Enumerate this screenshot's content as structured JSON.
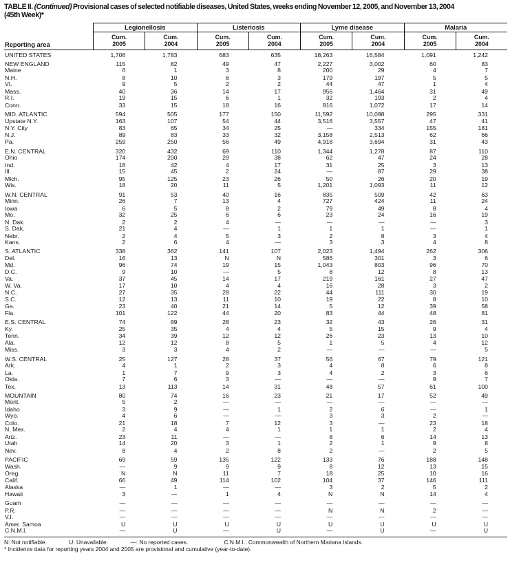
{
  "title": {
    "label": "TABLE II.",
    "continued": "(Continued)",
    "line1_rest": "Provisional cases of selected notifiable diseases, United States, weeks ending November 12, 2005, and November 13, 2004",
    "line2": "(45th Week)*"
  },
  "header": {
    "reporting_area": "Reporting area",
    "diseases": [
      "Legionellosis",
      "Listeriosis",
      "Lyme disease",
      "Malaria"
    ],
    "col_label": "Cum.",
    "years": [
      "2005",
      "2004"
    ]
  },
  "groups": [
    {
      "rows": [
        {
          "area": "UNITED STATES",
          "values": [
            "1,706",
            "1,783",
            "683",
            "635",
            "18,263",
            "16,584",
            "1,091",
            "1,242"
          ]
        }
      ]
    },
    {
      "rows": [
        {
          "area": "NEW ENGLAND",
          "values": [
            "115",
            "82",
            "49",
            "47",
            "2,227",
            "3,002",
            "60",
            "83"
          ]
        },
        {
          "area": "Maine",
          "values": [
            "6",
            "1",
            "3",
            "8",
            "200",
            "29",
            "4",
            "7"
          ]
        },
        {
          "area": "N.H.",
          "values": [
            "8",
            "10",
            "6",
            "3",
            "179",
            "197",
            "5",
            "5"
          ]
        },
        {
          "area": "Vt.",
          "values": [
            "9",
            "5",
            "2",
            "2",
            "44",
            "47",
            "1",
            "4"
          ]
        },
        {
          "area": "Mass.",
          "values": [
            "40",
            "36",
            "14",
            "17",
            "956",
            "1,464",
            "31",
            "49"
          ]
        },
        {
          "area": "R.I.",
          "values": [
            "19",
            "15",
            "6",
            "1",
            "32",
            "193",
            "2",
            "4"
          ]
        },
        {
          "area": "Conn.",
          "values": [
            "33",
            "15",
            "18",
            "16",
            "816",
            "1,072",
            "17",
            "14"
          ]
        }
      ]
    },
    {
      "rows": [
        {
          "area": "MID. ATLANTIC",
          "values": [
            "594",
            "505",
            "177",
            "150",
            "11,592",
            "10,098",
            "295",
            "331"
          ]
        },
        {
          "area": "Upstate N.Y.",
          "values": [
            "163",
            "107",
            "54",
            "44",
            "3,516",
            "3,557",
            "47",
            "41"
          ]
        },
        {
          "area": "N.Y. City",
          "values": [
            "83",
            "65",
            "34",
            "25",
            "—",
            "334",
            "155",
            "181"
          ]
        },
        {
          "area": "N.J.",
          "values": [
            "89",
            "83",
            "33",
            "32",
            "3,158",
            "2,513",
            "62",
            "66"
          ]
        },
        {
          "area": "Pa.",
          "values": [
            "259",
            "250",
            "56",
            "49",
            "4,918",
            "3,694",
            "31",
            "43"
          ]
        }
      ]
    },
    {
      "rows": [
        {
          "area": "E.N. CENTRAL",
          "values": [
            "320",
            "432",
            "69",
            "110",
            "1,344",
            "1,278",
            "87",
            "110"
          ]
        },
        {
          "area": "Ohio",
          "values": [
            "174",
            "200",
            "29",
            "38",
            "62",
            "47",
            "24",
            "28"
          ]
        },
        {
          "area": "Ind.",
          "values": [
            "18",
            "42",
            "4",
            "17",
            "31",
            "25",
            "3",
            "13"
          ]
        },
        {
          "area": "Ill.",
          "values": [
            "15",
            "45",
            "2",
            "24",
            "—",
            "87",
            "29",
            "38"
          ]
        },
        {
          "area": "Mich.",
          "values": [
            "95",
            "125",
            "23",
            "26",
            "50",
            "26",
            "20",
            "19"
          ]
        },
        {
          "area": "Wis.",
          "values": [
            "18",
            "20",
            "11",
            "5",
            "1,201",
            "1,093",
            "11",
            "12"
          ]
        }
      ]
    },
    {
      "rows": [
        {
          "area": "W.N. CENTRAL",
          "values": [
            "91",
            "53",
            "40",
            "16",
            "835",
            "509",
            "42",
            "63"
          ]
        },
        {
          "area": "Minn.",
          "values": [
            "26",
            "7",
            "13",
            "4",
            "727",
            "424",
            "11",
            "24"
          ]
        },
        {
          "area": "Iowa",
          "values": [
            "6",
            "5",
            "8",
            "2",
            "79",
            "49",
            "8",
            "4"
          ]
        },
        {
          "area": "Mo.",
          "values": [
            "32",
            "25",
            "6",
            "6",
            "23",
            "24",
            "16",
            "19"
          ]
        },
        {
          "area": "N. Dak.",
          "values": [
            "2",
            "2",
            "4",
            "—",
            "—",
            "—",
            "—",
            "3"
          ]
        },
        {
          "area": "S. Dak.",
          "values": [
            "21",
            "4",
            "—",
            "1",
            "1",
            "1",
            "—",
            "1"
          ]
        },
        {
          "area": "Nebr.",
          "values": [
            "2",
            "4",
            "5",
            "3",
            "2",
            "8",
            "3",
            "4"
          ]
        },
        {
          "area": "Kans.",
          "values": [
            "2",
            "6",
            "4",
            "—",
            "3",
            "3",
            "4",
            "8"
          ]
        }
      ]
    },
    {
      "rows": [
        {
          "area": "S. ATLANTIC",
          "values": [
            "338",
            "362",
            "141",
            "107",
            "2,023",
            "1,494",
            "262",
            "306"
          ]
        },
        {
          "area": "Del.",
          "values": [
            "16",
            "13",
            "N",
            "N",
            "586",
            "301",
            "3",
            "6"
          ]
        },
        {
          "area": "Md.",
          "values": [
            "96",
            "74",
            "19",
            "15",
            "1,043",
            "803",
            "96",
            "70"
          ]
        },
        {
          "area": "D.C.",
          "values": [
            "9",
            "10",
            "—",
            "5",
            "8",
            "12",
            "8",
            "13"
          ]
        },
        {
          "area": "Va.",
          "values": [
            "37",
            "45",
            "14",
            "17",
            "219",
            "161",
            "27",
            "47"
          ]
        },
        {
          "area": "W. Va.",
          "values": [
            "17",
            "10",
            "4",
            "4",
            "16",
            "28",
            "3",
            "2"
          ]
        },
        {
          "area": "N.C.",
          "values": [
            "27",
            "35",
            "28",
            "22",
            "44",
            "111",
            "30",
            "19"
          ]
        },
        {
          "area": "S.C.",
          "values": [
            "12",
            "13",
            "11",
            "10",
            "19",
            "22",
            "8",
            "10"
          ]
        },
        {
          "area": "Ga.",
          "values": [
            "23",
            "40",
            "21",
            "14",
            "5",
            "12",
            "39",
            "58"
          ]
        },
        {
          "area": "Fla.",
          "values": [
            "101",
            "122",
            "44",
            "20",
            "83",
            "44",
            "48",
            "81"
          ]
        }
      ]
    },
    {
      "rows": [
        {
          "area": "E.S. CENTRAL",
          "values": [
            "74",
            "89",
            "28",
            "23",
            "32",
            "43",
            "26",
            "31"
          ]
        },
        {
          "area": "Ky.",
          "values": [
            "25",
            "35",
            "4",
            "4",
            "5",
            "15",
            "9",
            "4"
          ]
        },
        {
          "area": "Tenn.",
          "values": [
            "34",
            "39",
            "12",
            "12",
            "26",
            "23",
            "13",
            "10"
          ]
        },
        {
          "area": "Ala.",
          "values": [
            "12",
            "12",
            "8",
            "5",
            "1",
            "5",
            "4",
            "12"
          ]
        },
        {
          "area": "Miss.",
          "values": [
            "3",
            "3",
            "4",
            "2",
            "—",
            "—",
            "—",
            "5"
          ]
        }
      ]
    },
    {
      "rows": [
        {
          "area": "W.S. CENTRAL",
          "values": [
            "25",
            "127",
            "28",
            "37",
            "56",
            "67",
            "79",
            "121"
          ]
        },
        {
          "area": "Ark.",
          "values": [
            "4",
            "1",
            "2",
            "3",
            "4",
            "8",
            "6",
            "8"
          ]
        },
        {
          "area": "La.",
          "values": [
            "1",
            "7",
            "9",
            "3",
            "4",
            "2",
            "3",
            "6"
          ]
        },
        {
          "area": "Okla.",
          "values": [
            "7",
            "6",
            "3",
            "—",
            "—",
            "—",
            "9",
            "7"
          ]
        },
        {
          "area": "Tex.",
          "values": [
            "13",
            "113",
            "14",
            "31",
            "48",
            "57",
            "61",
            "100"
          ]
        }
      ]
    },
    {
      "rows": [
        {
          "area": "MOUNTAIN",
          "values": [
            "80",
            "74",
            "16",
            "23",
            "21",
            "17",
            "52",
            "49"
          ]
        },
        {
          "area": "Mont.",
          "values": [
            "5",
            "2",
            "—",
            "—",
            "—",
            "—",
            "—",
            "—"
          ]
        },
        {
          "area": "Idaho",
          "values": [
            "3",
            "9",
            "—",
            "1",
            "2",
            "6",
            "—",
            "1"
          ]
        },
        {
          "area": "Wyo.",
          "values": [
            "4",
            "6",
            "—",
            "—",
            "3",
            "3",
            "2",
            "—"
          ]
        },
        {
          "area": "Colo.",
          "values": [
            "21",
            "18",
            "7",
            "12",
            "3",
            "—",
            "23",
            "18"
          ]
        },
        {
          "area": "N. Mex.",
          "values": [
            "2",
            "4",
            "4",
            "1",
            "1",
            "1",
            "2",
            "4"
          ]
        },
        {
          "area": "Ariz.",
          "values": [
            "23",
            "11",
            "—",
            "—",
            "8",
            "6",
            "14",
            "13"
          ]
        },
        {
          "area": "Utah",
          "values": [
            "14",
            "20",
            "3",
            "1",
            "2",
            "1",
            "9",
            "8"
          ]
        },
        {
          "area": "Nev.",
          "values": [
            "8",
            "4",
            "2",
            "8",
            "2",
            "—",
            "2",
            "5"
          ]
        }
      ]
    },
    {
      "rows": [
        {
          "area": "PACIFIC",
          "values": [
            "69",
            "59",
            "135",
            "122",
            "133",
            "76",
            "188",
            "148"
          ]
        },
        {
          "area": "Wash.",
          "values": [
            "—",
            "9",
            "9",
            "9",
            "8",
            "12",
            "13",
            "15"
          ]
        },
        {
          "area": "Oreg.",
          "values": [
            "N",
            "N",
            "11",
            "7",
            "18",
            "25",
            "10",
            "16"
          ]
        },
        {
          "area": "Calif.",
          "values": [
            "66",
            "49",
            "114",
            "102",
            "104",
            "37",
            "146",
            "111"
          ]
        },
        {
          "area": "Alaska",
          "values": [
            "—",
            "1",
            "—",
            "—",
            "3",
            "2",
            "5",
            "2"
          ]
        },
        {
          "area": "Hawaii",
          "values": [
            "3",
            "—",
            "1",
            "4",
            "N",
            "N",
            "14",
            "4"
          ]
        }
      ]
    },
    {
      "headerless": true,
      "rows": [
        {
          "area": "Guam",
          "values": [
            "—",
            "—",
            "—",
            "—",
            "—",
            "—",
            "—",
            "—"
          ]
        },
        {
          "area": "P.R.",
          "values": [
            "—",
            "—",
            "—",
            "—",
            "N",
            "N",
            "2",
            "—"
          ]
        },
        {
          "area": "V.I.",
          "values": [
            "—",
            "—",
            "—",
            "—",
            "—",
            "—",
            "—",
            "—"
          ]
        },
        {
          "area": "Amer. Samoa",
          "values": [
            "U",
            "U",
            "U",
            "U",
            "U",
            "U",
            "U",
            "U"
          ]
        },
        {
          "area": "C.N.M.I.",
          "values": [
            "—",
            "U",
            "—",
            "U",
            "—",
            "U",
            "—",
            "U"
          ]
        }
      ]
    }
  ],
  "footnotes": {
    "abbr": [
      "N: Not notifiable.",
      "U: Unavailable.",
      "—: No reported cases.",
      "C.N.M.I.: Commonwealth of Northern Mariana Islands."
    ],
    "line2": "* Incidence data for reporting years 2004 and 2005 are provisional and cumulative (year-to-date)."
  }
}
